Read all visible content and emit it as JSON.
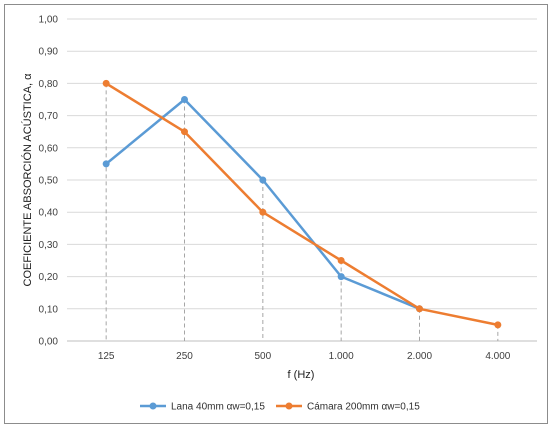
{
  "chart_data": {
    "type": "line",
    "title": "",
    "xlabel": "f (Hz)",
    "ylabel": "COEFICIENTE ABSORCIÓN ACÚSTICA, α",
    "categories": [
      "125",
      "250",
      "500",
      "1.000",
      "2.000",
      "4.000"
    ],
    "ylim": [
      0,
      1
    ],
    "yticks": [
      "0,00",
      "0,10",
      "0,20",
      "0,30",
      "0,40",
      "0,50",
      "0,60",
      "0,70",
      "0,80",
      "0,90",
      "1,00"
    ],
    "grid": "horizontal",
    "legend_position": "bottom",
    "series": [
      {
        "name": "Lana 40mm αw=0,15",
        "color": "#5b9bd5",
        "values": [
          0.55,
          0.75,
          0.5,
          0.2,
          0.1,
          null
        ]
      },
      {
        "name": "Cámara 200mm αw=0,15",
        "color": "#ed7d31",
        "values": [
          0.8,
          0.65,
          0.4,
          0.25,
          0.1,
          0.05
        ]
      }
    ]
  }
}
